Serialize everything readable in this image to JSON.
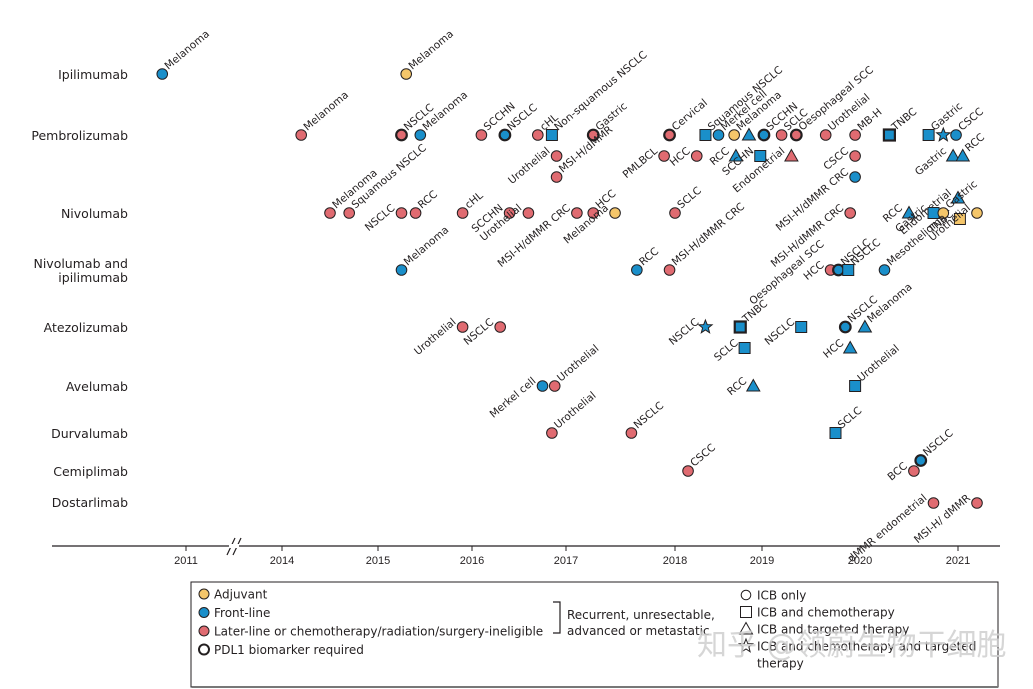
{
  "chart_data": {
    "type": "scatter",
    "title": "",
    "xlabel": "",
    "ylabel": "",
    "x_ticks": [
      "2011",
      "2014",
      "2015",
      "2016",
      "2017",
      "2018",
      "2019",
      "2020",
      "2021"
    ],
    "x_axis_break": "between 2011 and 2014",
    "xlim": [
      2010.6,
      2021.3
    ],
    "colors": {
      "adjuvant": "#f5c66a",
      "front_line": "#1a8fca",
      "later_line": "#e06b71"
    },
    "drugs": [
      "Ipilimumab",
      "Pembrolizumab",
      "Nivolumab",
      "Nivolumab and ipilimumab",
      "Atezolizumab",
      "Avelumab",
      "Durvalumab",
      "Cemiplimab",
      "Dostarlimab"
    ],
    "points": [
      {
        "drug": "Ipilimumab",
        "date": 2010.75,
        "row": 0,
        "label": "Melanoma",
        "setting": "front_line",
        "shape": "circle",
        "pdl1": false
      },
      {
        "drug": "Ipilimumab",
        "date": 2015.3,
        "row": 0,
        "label": "Melanoma",
        "setting": "adjuvant",
        "shape": "circle",
        "pdl1": false
      },
      {
        "drug": "Pembrolizumab",
        "date": 2014.2,
        "row": 0,
        "label": "Melanoma",
        "setting": "later_line",
        "shape": "circle",
        "pdl1": false
      },
      {
        "drug": "Pembrolizumab",
        "date": 2015.25,
        "row": 0,
        "label": "NSCLC",
        "setting": "later_line",
        "shape": "circle",
        "pdl1": true
      },
      {
        "drug": "Pembrolizumab",
        "date": 2015.45,
        "row": 0,
        "label": "Melanoma",
        "setting": "front_line",
        "shape": "circle",
        "pdl1": false
      },
      {
        "drug": "Pembrolizumab",
        "date": 2016.1,
        "row": 0,
        "label": "SCCHN",
        "setting": "later_line",
        "shape": "circle",
        "pdl1": false
      },
      {
        "drug": "Pembrolizumab",
        "date": 2016.35,
        "row": 0,
        "label": "NSCLC",
        "setting": "front_line",
        "shape": "circle",
        "pdl1": true
      },
      {
        "drug": "Pembrolizumab",
        "date": 2016.7,
        "row": 0,
        "label": "cHL",
        "setting": "later_line",
        "shape": "circle",
        "pdl1": false
      },
      {
        "drug": "Pembrolizumab",
        "date": 2016.85,
        "row": 0,
        "label": "Non-squamous NSCLC",
        "setting": "front_line",
        "shape": "square",
        "pdl1": false
      },
      {
        "drug": "Pembrolizumab",
        "date": 2017.25,
        "row": 0,
        "label": "Gastric",
        "setting": "later_line",
        "shape": "circle",
        "pdl1": true
      },
      {
        "drug": "Pembrolizumab",
        "date": 2017.95,
        "row": 0,
        "label": "Cervical",
        "setting": "later_line",
        "shape": "circle",
        "pdl1": true
      },
      {
        "drug": "Pembrolizumab",
        "date": 2018.35,
        "row": 0,
        "label": "Squamous NSCLC",
        "setting": "front_line",
        "shape": "square",
        "pdl1": false
      },
      {
        "drug": "Pembrolizumab",
        "date": 2018.5,
        "row": 0,
        "label": "Merkel cell",
        "setting": "front_line",
        "shape": "circle",
        "pdl1": false
      },
      {
        "drug": "Pembrolizumab",
        "date": 2018.68,
        "row": 0,
        "label": "Melanoma",
        "setting": "adjuvant",
        "shape": "circle",
        "pdl1": false
      },
      {
        "drug": "Pembrolizumab",
        "date": 2018.85,
        "row": 0,
        "label": "",
        "setting": "front_line",
        "shape": "triangle",
        "pdl1": false
      },
      {
        "drug": "Pembrolizumab",
        "date": 2019.02,
        "row": 0,
        "label": "SCCHN",
        "setting": "front_line",
        "shape": "circle",
        "pdl1": true
      },
      {
        "drug": "Pembrolizumab",
        "date": 2019.2,
        "row": 0,
        "label": "SCLC",
        "setting": "later_line",
        "shape": "circle",
        "pdl1": false
      },
      {
        "drug": "Pembrolizumab",
        "date": 2019.35,
        "row": 0,
        "label": "Oesophageal SCC",
        "setting": "later_line",
        "shape": "circle",
        "pdl1": true
      },
      {
        "drug": "Pembrolizumab",
        "date": 2019.65,
        "row": 0,
        "label": "Urothelial",
        "setting": "later_line",
        "shape": "circle",
        "pdl1": false
      },
      {
        "drug": "Pembrolizumab",
        "date": 2019.95,
        "row": 0,
        "label": "MB-H",
        "setting": "later_line",
        "shape": "circle",
        "pdl1": false
      },
      {
        "drug": "Pembrolizumab",
        "date": 2020.3,
        "row": 0,
        "label": "TNBC",
        "setting": "front_line",
        "shape": "square",
        "pdl1": true
      },
      {
        "drug": "Pembrolizumab",
        "date": 2020.7,
        "row": 0,
        "label": "Gastric",
        "setting": "front_line",
        "shape": "square",
        "pdl1": false
      },
      {
        "drug": "Pembrolizumab",
        "date": 2020.85,
        "row": 0,
        "label": "",
        "setting": "front_line",
        "shape": "star",
        "pdl1": false
      },
      {
        "drug": "Pembrolizumab",
        "date": 2020.98,
        "row": 0,
        "label": "CSCC",
        "setting": "front_line",
        "shape": "circle",
        "pdl1": false
      },
      {
        "drug": "Pembrolizumab",
        "date": 2016.9,
        "row": 1,
        "label": "Urothelial",
        "setting": "later_line",
        "shape": "circle",
        "pdl1": false,
        "side": "left"
      },
      {
        "drug": "Pembrolizumab",
        "date": 2016.9,
        "row": 2,
        "label": "MSI-H/dMMR",
        "setting": "later_line",
        "shape": "circle",
        "pdl1": false
      },
      {
        "drug": "Pembrolizumab",
        "date": 2017.9,
        "row": 1,
        "label": "PMLBCL",
        "setting": "later_line",
        "shape": "circle",
        "pdl1": false,
        "side": "left"
      },
      {
        "drug": "Pembrolizumab",
        "date": 2018.25,
        "row": 1,
        "label": "HCC",
        "setting": "later_line",
        "shape": "circle",
        "pdl1": false,
        "side": "left"
      },
      {
        "drug": "Pembrolizumab",
        "date": 2018.7,
        "row": 1,
        "label": "RCC",
        "setting": "front_line",
        "shape": "triangle",
        "pdl1": false,
        "side": "left",
        "offset_to": 2018.85
      },
      {
        "drug": "Pembrolizumab",
        "date": 2018.98,
        "row": 1,
        "label": "SCCHN",
        "setting": "front_line",
        "shape": "square",
        "pdl1": false,
        "side": "left"
      },
      {
        "drug": "Pembrolizumab",
        "date": 2019.3,
        "row": 1,
        "label": "Endometrial",
        "setting": "later_line",
        "shape": "triangle",
        "pdl1": false,
        "side": "left"
      },
      {
        "drug": "Pembrolizumab",
        "date": 2019.95,
        "row": 1,
        "label": "CSCC",
        "setting": "later_line",
        "shape": "circle",
        "pdl1": false,
        "side": "left"
      },
      {
        "drug": "Pembrolizumab",
        "date": 2019.95,
        "row": 2,
        "label": "MSI-H/dMMR CRC",
        "setting": "front_line",
        "shape": "circle",
        "pdl1": false,
        "side": "left"
      },
      {
        "drug": "Pembrolizumab",
        "date": 2020.95,
        "row": 1,
        "label": "Gastric",
        "setting": "front_line",
        "shape": "triangle",
        "pdl1": false,
        "side": "left"
      },
      {
        "drug": "Pembrolizumab",
        "date": 2021.05,
        "row": 1,
        "label": "RCC",
        "setting": "front_line",
        "shape": "triangle",
        "pdl1": false
      },
      {
        "drug": "Pembrolizumab",
        "date": 2021.0,
        "row": 3,
        "label": "Endometrial",
        "setting": "front_line",
        "shape": "triangle",
        "pdl1": false,
        "side": "left"
      },
      {
        "drug": "Pembrolizumab",
        "date": 2021.02,
        "row": 4,
        "label": "TNBC",
        "setting": "adjuvant",
        "shape": "square",
        "pdl1": false,
        "side": "left"
      },
      {
        "drug": "Nivolumab",
        "date": 2014.5,
        "row": 0,
        "label": "Melanoma",
        "setting": "later_line",
        "shape": "circle",
        "pdl1": false
      },
      {
        "drug": "Nivolumab",
        "date": 2014.7,
        "row": 0,
        "label": "Squamous NSCLC",
        "setting": "later_line",
        "shape": "circle",
        "pdl1": false
      },
      {
        "drug": "Nivolumab",
        "date": 2015.25,
        "row": 0,
        "label": "NSCLC",
        "setting": "later_line",
        "shape": "circle",
        "pdl1": false,
        "side": "left"
      },
      {
        "drug": "Nivolumab",
        "date": 2015.4,
        "row": 0,
        "label": "RCC",
        "setting": "later_line",
        "shape": "circle",
        "pdl1": false
      },
      {
        "drug": "Nivolumab",
        "date": 2015.9,
        "row": 0,
        "label": "cHL",
        "setting": "later_line",
        "shape": "circle",
        "pdl1": false
      },
      {
        "drug": "Nivolumab",
        "date": 2016.4,
        "row": 0,
        "label": "SCCHN",
        "setting": "later_line",
        "shape": "circle",
        "pdl1": false,
        "side": "left"
      },
      {
        "drug": "Nivolumab",
        "date": 2016.6,
        "row": 0,
        "label": "Urothelial",
        "setting": "later_line",
        "shape": "circle",
        "pdl1": false,
        "side": "left"
      },
      {
        "drug": "Nivolumab",
        "date": 2017.1,
        "row": 0,
        "label": "MSI-H/dMMR CRC",
        "setting": "later_line",
        "shape": "circle",
        "pdl1": false,
        "side": "left"
      },
      {
        "drug": "Nivolumab",
        "date": 2017.25,
        "row": 0,
        "label": "HCC",
        "setting": "later_line",
        "shape": "circle",
        "pdl1": false
      },
      {
        "drug": "Nivolumab",
        "date": 2017.45,
        "row": 0,
        "label": "Melanoma",
        "setting": "adjuvant",
        "shape": "circle",
        "pdl1": false,
        "side": "left"
      },
      {
        "drug": "Nivolumab",
        "date": 2018.0,
        "row": 0,
        "label": "SCLC",
        "setting": "later_line",
        "shape": "circle",
        "pdl1": false
      },
      {
        "drug": "Nivolumab",
        "date": 2019.9,
        "row": 0,
        "label": "MSI-H/dMMR CRC",
        "setting": "later_line",
        "shape": "circle",
        "pdl1": false,
        "side": "left"
      },
      {
        "drug": "Nivolumab",
        "date": 2020.5,
        "row": 0,
        "label": "RCC",
        "setting": "front_line",
        "shape": "triangle",
        "pdl1": false,
        "side": "left"
      },
      {
        "drug": "Nivolumab",
        "date": 2020.75,
        "row": 0,
        "label": "Gastric",
        "setting": "front_line",
        "shape": "square",
        "pdl1": false,
        "side": "left"
      },
      {
        "drug": "Nivolumab",
        "date": 2020.85,
        "row": 0,
        "label": "Gastric",
        "setting": "adjuvant",
        "shape": "circle",
        "pdl1": false
      },
      {
        "drug": "Nivolumab",
        "date": 2021.2,
        "row": 0,
        "label": "Urothelial",
        "setting": "adjuvant",
        "shape": "circle",
        "pdl1": false,
        "side": "left"
      },
      {
        "drug": "Nivolumab and ipilimumab",
        "date": 2015.25,
        "row": 0,
        "label": "Melanoma",
        "setting": "front_line",
        "shape": "circle",
        "pdl1": false
      },
      {
        "drug": "Nivolumab and ipilimumab",
        "date": 2017.65,
        "row": 0,
        "label": "RCC",
        "setting": "front_line",
        "shape": "circle",
        "pdl1": false
      },
      {
        "drug": "Nivolumab and ipilimumab",
        "date": 2017.95,
        "row": 0,
        "label": "MSI-H/dMMR CRC",
        "setting": "later_line",
        "shape": "circle",
        "pdl1": false
      },
      {
        "drug": "Nivolumab and ipilimumab",
        "date": 2019.7,
        "row": 0,
        "label": "HCC",
        "setting": "later_line",
        "shape": "circle",
        "pdl1": false,
        "side": "left"
      },
      {
        "drug": "Nivolumab and ipilimumab",
        "date": 2019.78,
        "row": 0,
        "label": "NSCLC",
        "setting": "front_line",
        "shape": "circle",
        "pdl1": true
      },
      {
        "drug": "Nivolumab and ipilimumab",
        "date": 2019.88,
        "row": 0,
        "label": "NSCLC",
        "setting": "front_line",
        "shape": "square",
        "pdl1": false
      },
      {
        "drug": "Nivolumab and ipilimumab",
        "date": 2020.25,
        "row": 0,
        "label": "Mesothelioma",
        "setting": "front_line",
        "shape": "circle",
        "pdl1": false
      },
      {
        "drug": "Nivolumab and ipilimumab",
        "date": 2019.7,
        "row": -1,
        "label": "Oesophageal SCC",
        "setting": "later_line",
        "shape": "none",
        "pdl1": false,
        "side": "left",
        "note": "label only, belongs to HCC cluster"
      },
      {
        "drug": "Atezolizumab",
        "date": 2015.9,
        "row": 0,
        "label": "Urothelial",
        "setting": "later_line",
        "shape": "circle",
        "pdl1": false,
        "side": "left"
      },
      {
        "drug": "Atezolizumab",
        "date": 2016.3,
        "row": 0,
        "label": "NSCLC",
        "setting": "later_line",
        "shape": "circle",
        "pdl1": false,
        "side": "left"
      },
      {
        "drug": "Atezolizumab",
        "date": 2018.35,
        "row": 0,
        "label": "NSCLC",
        "setting": "front_line",
        "shape": "star",
        "pdl1": false,
        "side": "left"
      },
      {
        "drug": "Atezolizumab",
        "date": 2018.75,
        "row": 0,
        "label": "TNBC",
        "setting": "front_line",
        "shape": "square",
        "pdl1": true
      },
      {
        "drug": "Atezolizumab",
        "date": 2018.8,
        "row": 1,
        "label": "SCLC",
        "setting": "front_line",
        "shape": "square",
        "pdl1": false,
        "side": "left"
      },
      {
        "drug": "Atezolizumab",
        "date": 2019.4,
        "row": 0,
        "label": "NSCLC",
        "setting": "front_line",
        "shape": "square",
        "pdl1": false,
        "side": "left"
      },
      {
        "drug": "Atezolizumab",
        "date": 2019.85,
        "row": 0,
        "label": "NSCLC",
        "setting": "front_line",
        "shape": "circle",
        "pdl1": true
      },
      {
        "drug": "Atezolizumab",
        "date": 2020.05,
        "row": 0,
        "label": "Melanoma",
        "setting": "front_line",
        "shape": "triangle",
        "pdl1": false
      },
      {
        "drug": "Atezolizumab",
        "date": 2019.9,
        "row": 1,
        "label": "HCC",
        "setting": "front_line",
        "shape": "triangle",
        "pdl1": false,
        "side": "left"
      },
      {
        "drug": "Avelumab",
        "date": 2016.75,
        "row": 0,
        "label": "Merkel cell",
        "setting": "front_line",
        "shape": "circle",
        "pdl1": false,
        "side": "left"
      },
      {
        "drug": "Avelumab",
        "date": 2016.88,
        "row": 0,
        "label": "Urothelial",
        "setting": "later_line",
        "shape": "circle",
        "pdl1": false
      },
      {
        "drug": "Avelumab",
        "date": 2018.9,
        "row": 0,
        "label": "RCC",
        "setting": "front_line",
        "shape": "triangle",
        "pdl1": false,
        "side": "left"
      },
      {
        "drug": "Avelumab",
        "date": 2019.95,
        "row": 0,
        "label": "Urothelial",
        "setting": "front_line",
        "shape": "square",
        "pdl1": false
      },
      {
        "drug": "Durvalumab",
        "date": 2016.85,
        "row": 0,
        "label": "Urothelial",
        "setting": "later_line",
        "shape": "circle",
        "pdl1": false
      },
      {
        "drug": "Durvalumab",
        "date": 2017.6,
        "row": 0,
        "label": "NSCLC",
        "setting": "later_line",
        "shape": "circle",
        "pdl1": false
      },
      {
        "drug": "Durvalumab",
        "date": 2019.75,
        "row": 0,
        "label": "SCLC",
        "setting": "front_line",
        "shape": "square",
        "pdl1": false
      },
      {
        "drug": "Cemiplimab",
        "date": 2018.15,
        "row": 0,
        "label": "CSCC",
        "setting": "later_line",
        "shape": "circle",
        "pdl1": false
      },
      {
        "drug": "Cemiplimab",
        "date": 2020.55,
        "row": 0,
        "label": "BCC",
        "setting": "later_line",
        "shape": "circle",
        "pdl1": false,
        "side": "left"
      },
      {
        "drug": "Cemiplimab",
        "date": 2020.62,
        "row": -0.5,
        "label": "NSCLC",
        "setting": "front_line",
        "shape": "circle",
        "pdl1": true
      },
      {
        "drug": "Dostarlimab",
        "date": 2020.75,
        "row": 0,
        "label": "dMMR endometrial",
        "setting": "later_line",
        "shape": "circle",
        "pdl1": false,
        "side": "up-left"
      },
      {
        "drug": "Dostarlimab",
        "date": 2021.2,
        "row": 0,
        "label": "MSI-H/ dMMR",
        "setting": "later_line",
        "shape": "circle",
        "pdl1": false,
        "side": "left"
      }
    ]
  },
  "legend": {
    "settings": [
      {
        "key": "adjuvant",
        "label": "Adjuvant"
      },
      {
        "key": "front_line",
        "label": "Front-line"
      },
      {
        "key": "later_line",
        "label": "Later-line or chemotherapy/radiation/surgery-ineligible"
      },
      {
        "key": "pdl1",
        "label": "PDL1 biomarker required"
      }
    ],
    "bracket_text": [
      "Recurrent, unresectable,",
      "advanced or metastatic"
    ],
    "shapes": [
      {
        "shape": "circle",
        "label": "ICB only"
      },
      {
        "shape": "square",
        "label": "ICB and chemotherapy"
      },
      {
        "shape": "triangle",
        "label": "ICB and targeted therapy"
      },
      {
        "shape": "star",
        "label": "ICB and chemotherapy and targeted"
      },
      {
        "shape": "none",
        "label": "therapy"
      }
    ]
  },
  "watermark": "知乎 @领蔚生物干细胞"
}
